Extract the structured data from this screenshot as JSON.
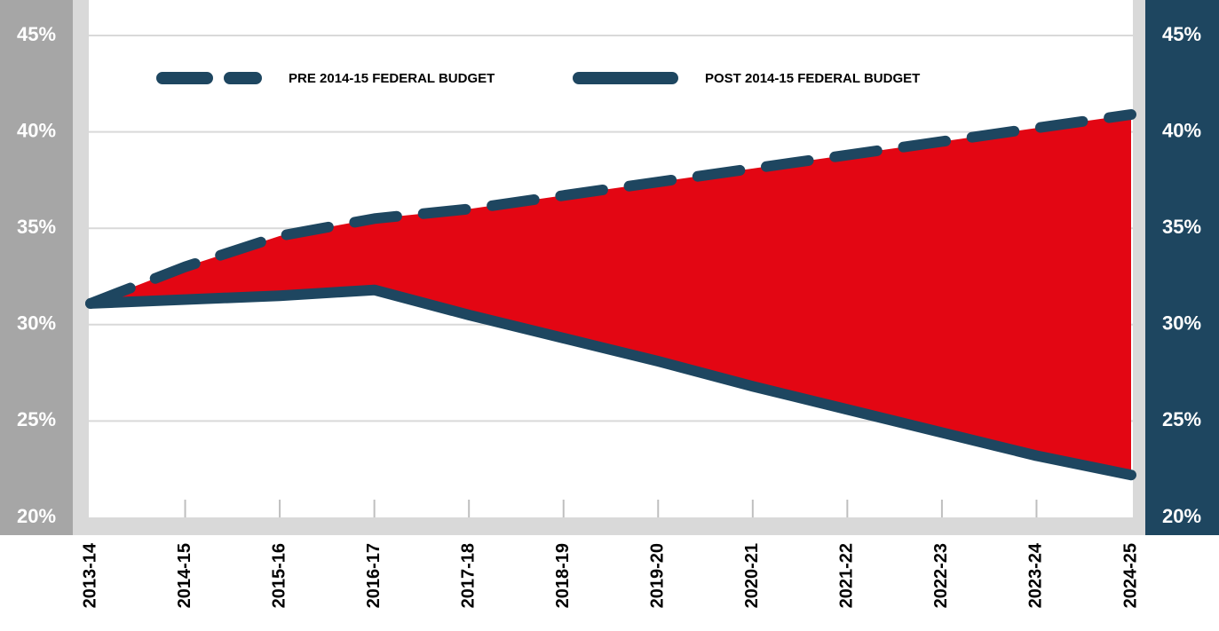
{
  "chart_data": {
    "type": "line",
    "categories": [
      "2013-14",
      "2014-15",
      "2015-16",
      "2016-17",
      "2017-18",
      "2018-19",
      "2019-20",
      "2020-21",
      "2021-22",
      "2022-23",
      "2023-24",
      "2024-25"
    ],
    "series": [
      {
        "name": "PRE 2014-15 FEDERAL BUDGET",
        "color": "#1e4660",
        "dash": true,
        "values": [
          31.1,
          33.0,
          34.6,
          35.5,
          36.0,
          36.7,
          37.4,
          38.1,
          38.8,
          39.5,
          40.2,
          40.9
        ]
      },
      {
        "name": "POST 2014-15 FEDERAL BUDGET",
        "color": "#1e4660",
        "dash": false,
        "values": [
          31.1,
          31.3,
          31.5,
          31.8,
          30.5,
          29.3,
          28.1,
          26.8,
          25.6,
          24.4,
          23.2,
          22.2
        ]
      }
    ],
    "fill_color": "#e30613",
    "ylim": [
      20,
      45
    ],
    "yticks": [
      {
        "value": 20,
        "label": "20%"
      },
      {
        "value": 25,
        "label": "25%"
      },
      {
        "value": 30,
        "label": "30%"
      },
      {
        "value": 35,
        "label": "35%"
      },
      {
        "value": 40,
        "label": "40%"
      },
      {
        "value": 45,
        "label": "45%"
      }
    ],
    "y2lim": [
      20,
      45
    ],
    "y2ticks": [
      {
        "value": 20,
        "label": "20%"
      },
      {
        "value": 25,
        "label": "25%"
      },
      {
        "value": 30,
        "label": "30%"
      },
      {
        "value": 35,
        "label": "35%"
      },
      {
        "value": 40,
        "label": "40%"
      },
      {
        "value": 45,
        "label": "45%"
      }
    ],
    "grid": true,
    "legend": "top"
  }
}
